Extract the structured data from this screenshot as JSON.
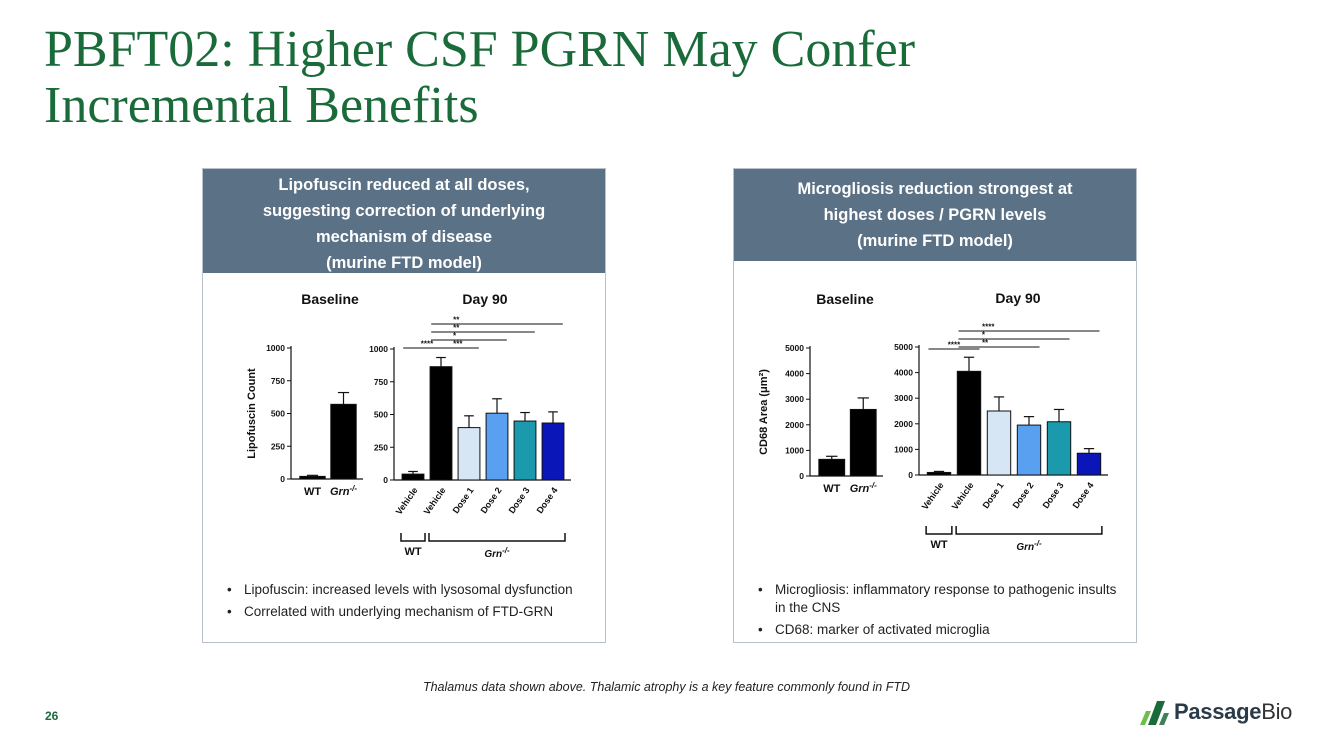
{
  "slide": {
    "title_line1": "PBFT02: Higher CSF PGRN May Confer",
    "title_line2": "Incremental Benefits",
    "footnote": "Thalamus data shown above. Thalamic atrophy is a key feature commonly found in FTD",
    "page_number": "26",
    "logo": {
      "part1": "Passage",
      "part2": "Bio",
      "color": "#1a6b3a"
    }
  },
  "left_panel": {
    "header_lines": [
      "Lipofuscin reduced at all doses,",
      "suggesting correction of underlying",
      "mechanism of disease",
      "(murine FTD model)"
    ],
    "bullets": [
      "Lipofuscin: increased levels with lysosomal dysfunction",
      "Correlated with underlying mechanism of FTD-GRN"
    ]
  },
  "right_panel": {
    "header_lines": [
      "Microgliosis reduction strongest at",
      "highest doses / PGRN levels",
      "(murine FTD model)"
    ],
    "bullets": [
      "Microgliosis: inflammatory response to pathogenic insults in the CNS",
      "CD68: marker of activated microglia"
    ]
  },
  "chart_data": [
    {
      "type": "bar",
      "title": "Baseline",
      "ylabel": "Lipofuscin Count",
      "ylim": [
        0,
        1000
      ],
      "yticks": [
        "0",
        "250",
        "500",
        "750",
        "1000"
      ],
      "categories": [
        "WT",
        "Grn"
      ],
      "category_superscript": [
        "",
        "-/-"
      ],
      "values": [
        20,
        570
      ],
      "errors": [
        8,
        90
      ],
      "colors": [
        "#000000",
        "#000000"
      ]
    },
    {
      "type": "bar",
      "title": "Day 90",
      "ylim": [
        0,
        1000
      ],
      "yticks": [
        "0",
        "250",
        "500",
        "750",
        "1000"
      ],
      "categories": [
        "Vehicle",
        "Vehicle",
        "Dose 1",
        "Dose 2",
        "Dose 3",
        "Dose 4"
      ],
      "values": [
        45,
        865,
        400,
        510,
        450,
        435
      ],
      "errors": [
        20,
        70,
        90,
        110,
        65,
        85
      ],
      "colors": [
        "#000000",
        "#000000",
        "#d6e6f5",
        "#5aa0f0",
        "#1a9aac",
        "#0a16b8"
      ],
      "groups": [
        {
          "label": "WT",
          "sup": ""
        },
        {
          "label": "Grn",
          "sup": "-/-"
        }
      ],
      "significance": [
        {
          "label": "****",
          "from": 0,
          "to": 1
        },
        {
          "label": "***",
          "from": 1,
          "to": 2
        },
        {
          "label": "*",
          "from": 1,
          "to": 3
        },
        {
          "label": "**",
          "from": 1,
          "to": 4
        },
        {
          "label": "**",
          "from": 1,
          "to": 5
        }
      ]
    },
    {
      "type": "bar",
      "title": "Baseline",
      "ylabel": "CD68 Area (μm²)",
      "ylim": [
        0,
        5000
      ],
      "yticks": [
        "0",
        "1000",
        "2000",
        "3000",
        "4000",
        "5000"
      ],
      "categories": [
        "WT",
        "Grn"
      ],
      "category_superscript": [
        "",
        "-/-"
      ],
      "values": [
        650,
        2600
      ],
      "errors": [
        120,
        450
      ],
      "colors": [
        "#000000",
        "#000000"
      ]
    },
    {
      "type": "bar",
      "title": "Day 90",
      "ylim": [
        0,
        5000
      ],
      "yticks": [
        "0",
        "1000",
        "2000",
        "3000",
        "4000",
        "5000"
      ],
      "categories": [
        "Vehicle",
        "Vehicle",
        "Dose 1",
        "Dose 2",
        "Dose 3",
        "Dose 4"
      ],
      "values": [
        100,
        4050,
        2500,
        1950,
        2080,
        850
      ],
      "errors": [
        40,
        550,
        550,
        330,
        480,
        180
      ],
      "colors": [
        "#000000",
        "#000000",
        "#d6e6f5",
        "#5aa0f0",
        "#1a9aac",
        "#0a16b8"
      ],
      "groups": [
        {
          "label": "WT",
          "sup": ""
        },
        {
          "label": "Grn",
          "sup": "-/-"
        }
      ],
      "significance": [
        {
          "label": "****",
          "from": 0,
          "to": 1
        },
        {
          "label": "**",
          "from": 1,
          "to": 3
        },
        {
          "label": "*",
          "from": 1,
          "to": 4
        },
        {
          "label": "****",
          "from": 1,
          "to": 5
        }
      ]
    }
  ]
}
